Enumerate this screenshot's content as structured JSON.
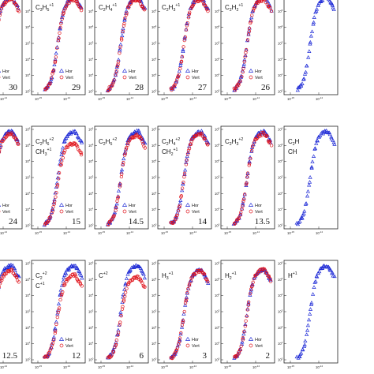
{
  "colors": {
    "hor": "#1f2bd6",
    "vert": "#e0141c",
    "frame": "#222222"
  },
  "chart_data": [
    {
      "type": "scatter",
      "species": [],
      "legend": [
        "Hor",
        "Vert"
      ],
      "number": "30",
      "series": [
        {
          "name": "Hor",
          "marker": "triangle",
          "rise": 0.8,
          "peak": 1.0
        },
        {
          "name": "Vert",
          "marker": "circle",
          "rise": 0.8,
          "peak": 0.98
        }
      ]
    },
    {
      "type": "scatter",
      "species": [
        {
          "base": "C",
          "sub": "3",
          "mid": "H",
          "sub2": "5",
          "sup": "+1"
        }
      ],
      "legend": [
        "Hor",
        "Vert"
      ],
      "number": "29",
      "series": [
        {
          "name": "Hor",
          "marker": "triangle",
          "rise": 0.8,
          "peak": 1.0
        },
        {
          "name": "Vert",
          "marker": "circle",
          "rise": 0.8,
          "peak": 0.98
        }
      ]
    },
    {
      "type": "scatter",
      "species": [
        {
          "base": "C",
          "sub": "2",
          "mid": "H",
          "sub2": "4",
          "sup": "+1"
        }
      ],
      "legend": [
        "Hor",
        "Vert"
      ],
      "number": "28",
      "series": [
        {
          "name": "Hor",
          "marker": "triangle",
          "rise": 0.8,
          "peak": 1.0
        },
        {
          "name": "Vert",
          "marker": "circle",
          "rise": 0.8,
          "peak": 0.98
        }
      ]
    },
    {
      "type": "scatter",
      "species": [
        {
          "base": "C",
          "sub": "2",
          "mid": "H",
          "sub2": "3",
          "sup": "+1"
        }
      ],
      "legend": [
        "Hor",
        "Vert"
      ],
      "number": "27",
      "series": [
        {
          "name": "Hor",
          "marker": "triangle",
          "rise": 0.8,
          "peak": 1.0
        },
        {
          "name": "Vert",
          "marker": "circle",
          "rise": 0.8,
          "peak": 0.98
        }
      ]
    },
    {
      "type": "scatter",
      "species": [
        {
          "base": "C",
          "sub": "2",
          "mid": "H",
          "sub2": "2",
          "sup": "+1"
        }
      ],
      "legend": [
        "Hor",
        "Vert"
      ],
      "number": "26",
      "series": [
        {
          "name": "Hor",
          "marker": "triangle",
          "rise": 0.8,
          "peak": 1.0
        },
        {
          "name": "Vert",
          "marker": "circle",
          "rise": 0.8,
          "peak": 0.98
        }
      ]
    },
    {
      "type": "scatter",
      "species": [],
      "legend": [],
      "number": "",
      "series": [
        {
          "name": "Hor",
          "marker": "triangle",
          "rise": 0.8,
          "peak": 1.0
        }
      ]
    },
    {
      "type": "scatter",
      "species": [],
      "legend": [
        "Hor",
        "Vert"
      ],
      "number": "24",
      "series": [
        {
          "name": "Hor",
          "marker": "triangle",
          "rise": 0.8,
          "peak": 1.0
        },
        {
          "name": "Vert",
          "marker": "circle",
          "rise": 0.8,
          "peak": 0.98
        }
      ]
    },
    {
      "type": "scatter",
      "species": [
        {
          "base": "C",
          "sub": "2",
          "mid": "H",
          "sub2": "6",
          "sup": "+2"
        },
        {
          "base": "CH",
          "sub": "3",
          "mid": "",
          "sub2": "",
          "sup": "+1"
        }
      ],
      "legend": [
        "Hor",
        "Vert"
      ],
      "number": "15",
      "series": [
        {
          "name": "Hor",
          "marker": "triangle",
          "rise": 0.8,
          "peak": 1.0
        },
        {
          "name": "Vert",
          "marker": "circle",
          "rise": 0.8,
          "peak": 0.88
        }
      ]
    },
    {
      "type": "scatter",
      "species": [
        {
          "base": "C",
          "sub": "2",
          "mid": "H",
          "sub2": "5",
          "sup": "+2"
        }
      ],
      "legend": [
        "Hor",
        "Vert"
      ],
      "number": "14.5",
      "series": [
        {
          "name": "Hor",
          "marker": "triangle",
          "rise": 0.8,
          "peak": 1.0
        },
        {
          "name": "Vert",
          "marker": "circle",
          "rise": 0.8,
          "peak": 0.96
        }
      ]
    },
    {
      "type": "scatter",
      "species": [
        {
          "base": "C",
          "sub": "2",
          "mid": "H",
          "sub2": "4",
          "sup": "+2"
        },
        {
          "base": "CH",
          "sub": "2",
          "mid": "",
          "sub2": "",
          "sup": "+1"
        }
      ],
      "legend": [
        "Hor",
        "Vert"
      ],
      "number": "14",
      "series": [
        {
          "name": "Hor",
          "marker": "triangle",
          "rise": 0.8,
          "peak": 1.0
        },
        {
          "name": "Vert",
          "marker": "circle",
          "rise": 0.8,
          "peak": 0.98
        }
      ]
    },
    {
      "type": "scatter",
      "species": [
        {
          "base": "C",
          "sub": "2",
          "mid": "H",
          "sub2": "3",
          "sup": "+2"
        }
      ],
      "legend": [
        "Hor",
        "Vert"
      ],
      "number": "13.5",
      "series": [
        {
          "name": "Hor",
          "marker": "triangle",
          "rise": 0.8,
          "peak": 1.0
        },
        {
          "name": "Vert",
          "marker": "circle",
          "rise": 0.8,
          "peak": 0.98
        }
      ]
    },
    {
      "type": "scatter",
      "species": [
        {
          "base": "C",
          "sub": "2",
          "mid": "H",
          "sub2": "",
          "sup": ""
        },
        {
          "base": "CH",
          "sub": "",
          "mid": "",
          "sub2": "",
          "sup": ""
        }
      ],
      "legend": [],
      "number": "",
      "series": [
        {
          "name": "Hor",
          "marker": "triangle",
          "rise": 0.8,
          "peak": 1.0
        }
      ]
    },
    {
      "type": "scatter",
      "species": [],
      "legend": [],
      "number": "12.5",
      "series": [
        {
          "name": "Hor",
          "marker": "triangle",
          "rise": 0.8,
          "peak": 1.0
        },
        {
          "name": "Vert",
          "marker": "circle",
          "rise": 0.8,
          "peak": 0.95
        }
      ]
    },
    {
      "type": "scatter",
      "species": [
        {
          "base": "C",
          "sub": "2",
          "mid": "",
          "sub2": "",
          "sup": "+2"
        },
        {
          "base": "C",
          "sub": "",
          "mid": "",
          "sub2": "",
          "sup": "+1"
        }
      ],
      "legend": [
        "Hor",
        "Vert"
      ],
      "number": "12",
      "series": [
        {
          "name": "Hor",
          "marker": "triangle",
          "rise": 0.8,
          "peak": 1.0
        },
        {
          "name": "Vert",
          "marker": "circle",
          "rise": 0.8,
          "peak": 0.9
        }
      ]
    },
    {
      "type": "scatter",
      "species": [
        {
          "base": "C",
          "sub": "",
          "mid": "",
          "sub2": "",
          "sup": "+2"
        }
      ],
      "legend": [],
      "number": "6",
      "series": [
        {
          "name": "Hor",
          "marker": "triangle",
          "rise": 0.8,
          "peak": 1.0
        },
        {
          "name": "Vert",
          "marker": "circle",
          "rise": 0.8,
          "peak": 0.88
        }
      ]
    },
    {
      "type": "scatter",
      "species": [
        {
          "base": "H",
          "sub": "3",
          "mid": "",
          "sub2": "",
          "sup": "+1"
        }
      ],
      "legend": [
        "Hor",
        "Vert"
      ],
      "number": "3",
      "series": [
        {
          "name": "Hor",
          "marker": "triangle",
          "rise": 0.8,
          "peak": 0.95
        },
        {
          "name": "Vert",
          "marker": "circle",
          "rise": 0.8,
          "peak": 0.95
        }
      ]
    },
    {
      "type": "scatter",
      "species": [
        {
          "base": "H",
          "sub": "2",
          "mid": "",
          "sub2": "",
          "sup": "+1"
        }
      ],
      "legend": [
        "Hor",
        "Vert"
      ],
      "number": "2",
      "series": [
        {
          "name": "Hor",
          "marker": "triangle",
          "rise": 0.8,
          "peak": 0.96
        },
        {
          "name": "Vert",
          "marker": "circle",
          "rise": 0.8,
          "peak": 0.96
        }
      ]
    },
    {
      "type": "scatter",
      "species": [
        {
          "base": "H",
          "sub": "",
          "mid": "",
          "sub2": "",
          "sup": "+1"
        }
      ],
      "legend": [],
      "number": "",
      "series": [
        {
          "name": "Hor",
          "marker": "triangle",
          "rise": 0.8,
          "peak": 1.0
        }
      ]
    }
  ],
  "axes": {
    "x_tick_labels": [
      "10",
      "10"
    ],
    "x_tick_exps": [
      "-15",
      "-14"
    ],
    "y_tick_labels": [
      "10",
      "10",
      "10",
      "10",
      "10",
      "10",
      "10"
    ],
    "y_tick_exps": [
      "0",
      "1",
      "2",
      "3",
      "4",
      "5",
      "6"
    ]
  }
}
